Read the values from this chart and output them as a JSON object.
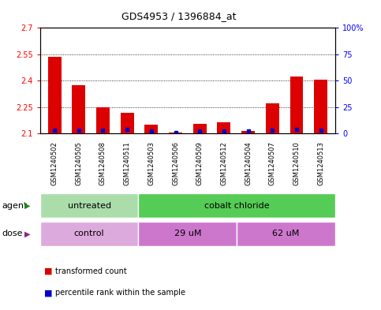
{
  "title": "GDS4953 / 1396884_at",
  "samples": [
    "GSM1240502",
    "GSM1240505",
    "GSM1240508",
    "GSM1240511",
    "GSM1240503",
    "GSM1240506",
    "GSM1240509",
    "GSM1240512",
    "GSM1240504",
    "GSM1240507",
    "GSM1240510",
    "GSM1240513"
  ],
  "transformed_count": [
    2.535,
    2.375,
    2.25,
    2.215,
    2.15,
    2.105,
    2.155,
    2.165,
    2.115,
    2.27,
    2.425,
    2.405
  ],
  "percentile": [
    3,
    3,
    3,
    4,
    2,
    1,
    2,
    2,
    2,
    3,
    4,
    3
  ],
  "ylim_left": [
    2.1,
    2.7
  ],
  "ylim_right": [
    0,
    100
  ],
  "yticks_left": [
    2.1,
    2.25,
    2.4,
    2.55,
    2.7
  ],
  "yticks_right": [
    0,
    25,
    50,
    75,
    100
  ],
  "ytick_labels_right": [
    "0",
    "25",
    "50",
    "75",
    "100%"
  ],
  "gridlines": [
    2.25,
    2.4,
    2.55
  ],
  "bar_color": "#dd0000",
  "dot_color": "#0000cc",
  "bar_width": 0.55,
  "agent_groups": [
    {
      "label": "untreated",
      "start": 0,
      "end": 4,
      "color": "#aaddaa"
    },
    {
      "label": "cobalt chloride",
      "start": 4,
      "end": 12,
      "color": "#55cc55"
    }
  ],
  "dose_groups": [
    {
      "label": "control",
      "start": 0,
      "end": 4,
      "color": "#ddaadd"
    },
    {
      "label": "29 uM",
      "start": 4,
      "end": 8,
      "color": "#cc88cc"
    },
    {
      "label": "62 uM",
      "start": 8,
      "end": 12,
      "color": "#cc88cc"
    }
  ],
  "agent_label": "agent",
  "dose_label": "dose",
  "legend_items": [
    {
      "label": "transformed count",
      "color": "#dd0000"
    },
    {
      "label": "percentile rank within the sample",
      "color": "#0000cc"
    }
  ],
  "bg_color": "#ffffff",
  "plot_bg": "#ffffff",
  "tick_area_bg": "#bbbbbb"
}
